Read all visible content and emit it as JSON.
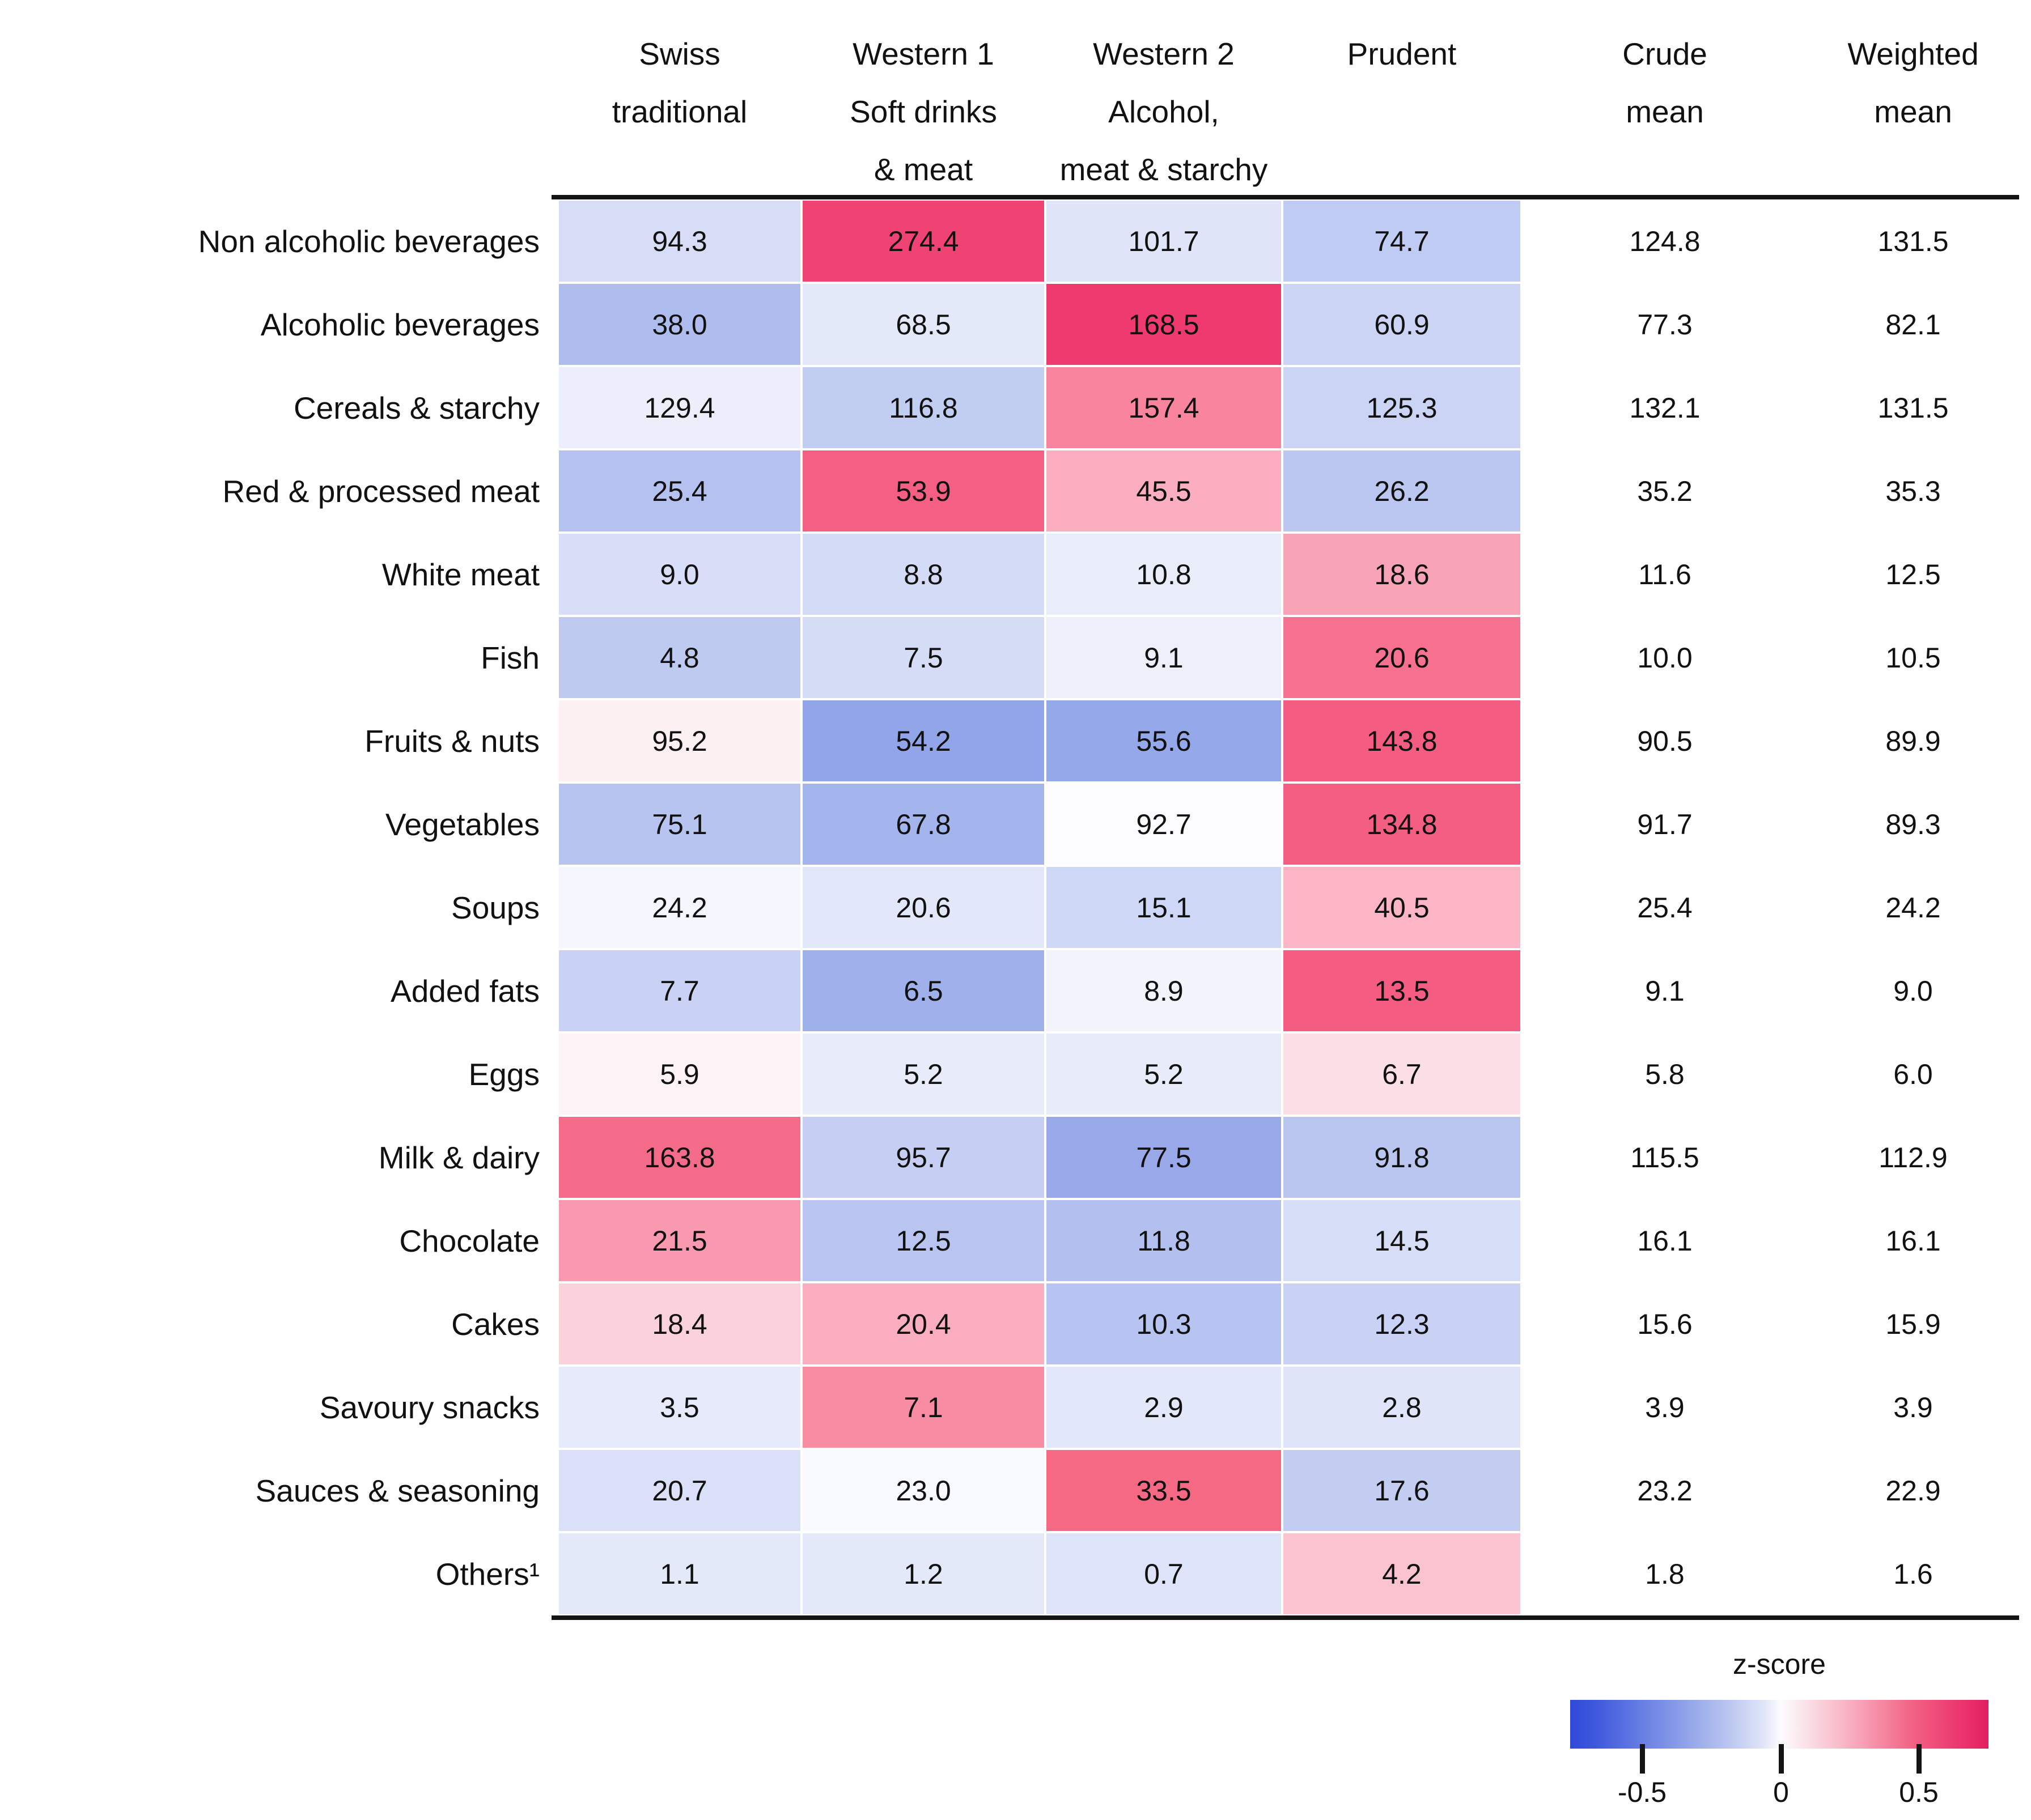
{
  "figure": {
    "background": "#ffffff",
    "text_color": "#111111",
    "rule_color": "#141414"
  },
  "chart_data": {
    "type": "heatmap",
    "title": "",
    "columns_display": [
      "Swiss\ntraditional",
      "Western 1\nSoft drinks\n& meat",
      "Western 2\nAlcohol,\nmeat & starchy",
      "Prudent",
      "Crude\nmean",
      "Weighted\nmean"
    ],
    "column_names": [
      "Swiss traditional",
      "Western 1 Soft drinks & meat",
      "Western 2 Alcohol, meat & starchy",
      "Prudent",
      "Crude mean",
      "Weighted mean"
    ],
    "rows": [
      {
        "label": "Non alcoholic beverages",
        "values": [
          94.3,
          274.4,
          101.7,
          74.7
        ],
        "cell_colors": [
          "#D7DDF7",
          "#EF4373",
          "#DFE4F8",
          "#BFCBF2"
        ],
        "crude_mean": 124.8,
        "weighted_mean": 131.5
      },
      {
        "label": "Alcoholic beverages",
        "values": [
          38.0,
          68.5,
          168.5,
          60.9
        ],
        "cell_colors": [
          "#AEBDEE",
          "#E4E9FA",
          "#EE3A6E",
          "#CBD4F4"
        ],
        "crude_mean": 77.3,
        "weighted_mean": 82.1
      },
      {
        "label": "Cereals & starchy",
        "values": [
          129.4,
          116.8,
          157.4,
          125.3
        ],
        "cell_colors": [
          "#ECEFFB",
          "#C2CDF2",
          "#F8849E",
          "#CBD4F4"
        ],
        "crude_mean": 132.1,
        "weighted_mean": 131.5
      },
      {
        "label": "Red & processed meat",
        "values": [
          25.4,
          53.9,
          45.5,
          26.2
        ],
        "cell_colors": [
          "#B5C2EF",
          "#F45F83",
          "#FAAEC0",
          "#BBC7F0"
        ],
        "crude_mean": 35.2,
        "weighted_mean": 35.3
      },
      {
        "label": "White meat",
        "values": [
          9.0,
          8.8,
          10.8,
          18.6
        ],
        "cell_colors": [
          "#D8DEF7",
          "#D4DBF6",
          "#E9EDFA",
          "#F9A3B7"
        ],
        "crude_mean": 11.6,
        "weighted_mean": 12.5
      },
      {
        "label": "Fish",
        "values": [
          4.8,
          7.5,
          9.1,
          20.6
        ],
        "cell_colors": [
          "#BFCAF1",
          "#D5DCF6",
          "#EDF0FB",
          "#F5718F"
        ],
        "crude_mean": 10.0,
        "weighted_mean": 10.5
      },
      {
        "label": "Fruits & nuts",
        "values": [
          95.2,
          54.2,
          55.6,
          143.8
        ],
        "cell_colors": [
          "#FDF0F3",
          "#92A5E8",
          "#95A8E9",
          "#F45C81"
        ],
        "crude_mean": 90.5,
        "weighted_mean": 89.9
      },
      {
        "label": "Vegetables",
        "values": [
          75.1,
          67.8,
          92.7,
          134.8
        ],
        "cell_colors": [
          "#B7C4F0",
          "#A4B4EC",
          "#FCFCFE",
          "#F45E83"
        ],
        "crude_mean": 91.7,
        "weighted_mean": 89.3
      },
      {
        "label": "Soups",
        "values": [
          24.2,
          20.6,
          15.1,
          40.5
        ],
        "cell_colors": [
          "#F5F6FD",
          "#E2E7F9",
          "#CED7F5",
          "#FBB5C4"
        ],
        "crude_mean": 25.4,
        "weighted_mean": 24.2
      },
      {
        "label": "Added fats",
        "values": [
          7.7,
          6.5,
          8.9,
          13.5
        ],
        "cell_colors": [
          "#C9D2F4",
          "#9FB0EA",
          "#F2F4FC",
          "#F45C81"
        ],
        "crude_mean": 9.1,
        "weighted_mean": 9.0
      },
      {
        "label": "Eggs",
        "values": [
          5.9,
          5.2,
          5.2,
          6.7
        ],
        "cell_colors": [
          "#FDF3F6",
          "#E7EBFA",
          "#E7EBFA",
          "#FCDFE6"
        ],
        "crude_mean": 5.8,
        "weighted_mean": 6.0
      },
      {
        "label": "Milk & dairy",
        "values": [
          163.8,
          95.7,
          77.5,
          91.8
        ],
        "cell_colors": [
          "#F56C8B",
          "#C6CFF3",
          "#98A8E9",
          "#BAC6F0"
        ],
        "crude_mean": 115.5,
        "weighted_mean": 112.9
      },
      {
        "label": "Chocolate",
        "values": [
          21.5,
          12.5,
          11.8,
          14.5
        ],
        "cell_colors": [
          "#F899AF",
          "#B9C5F0",
          "#B3C0EF",
          "#D6DDF6"
        ],
        "crude_mean": 16.1,
        "weighted_mean": 16.1
      },
      {
        "label": "Cakes",
        "values": [
          18.4,
          20.4,
          10.3,
          12.3
        ],
        "cell_colors": [
          "#FBD2DB",
          "#FAAEC0",
          "#B7C3F0",
          "#C9D2F4"
        ],
        "crude_mean": 15.6,
        "weighted_mean": 15.9
      },
      {
        "label": "Savoury snacks",
        "values": [
          3.5,
          7.1,
          2.9,
          2.8
        ],
        "cell_colors": [
          "#E6EAFA",
          "#F78CA3",
          "#E2E7F9",
          "#DFE4F8"
        ],
        "crude_mean": 3.9,
        "weighted_mean": 3.9
      },
      {
        "label": "Sauces & seasoning",
        "values": [
          20.7,
          23.0,
          33.5,
          17.6
        ],
        "cell_colors": [
          "#D9E0F7",
          "#F8F9FE",
          "#F56985",
          "#C3CDF2"
        ],
        "crude_mean": 23.2,
        "weighted_mean": 22.9
      },
      {
        "label": "Others¹",
        "values": [
          1.1,
          1.2,
          0.7,
          4.2
        ],
        "cell_colors": [
          "#E4E9F9",
          "#E4E9F9",
          "#DDE3F8",
          "#FBC3CF"
        ],
        "crude_mean": 1.8,
        "weighted_mean": 1.6
      }
    ],
    "legend": {
      "title": "z-score",
      "tick_labels": [
        "-0.5",
        "0",
        "0.5"
      ],
      "tick_positions_pct": [
        17.2,
        50.4,
        83.3
      ],
      "range": [
        -0.75,
        0.75
      ],
      "gradient_stops": [
        [
          "0%",
          "#3049D8"
        ],
        [
          "6%",
          "#3E58DC"
        ],
        [
          "20%",
          "#7288E5"
        ],
        [
          "35%",
          "#AEBCEE"
        ],
        [
          "46%",
          "#DFE4F8"
        ],
        [
          "50.4%",
          "#FDFCFE"
        ],
        [
          "56%",
          "#FBE3E9"
        ],
        [
          "68%",
          "#F8A9BC"
        ],
        [
          "82%",
          "#F26184"
        ],
        [
          "95%",
          "#EA2F6B"
        ],
        [
          "100%",
          "#E0205F"
        ]
      ]
    },
    "layout": {
      "grid": false,
      "legend_position": "bottom-right",
      "values_shown_in_cells": true
    }
  }
}
